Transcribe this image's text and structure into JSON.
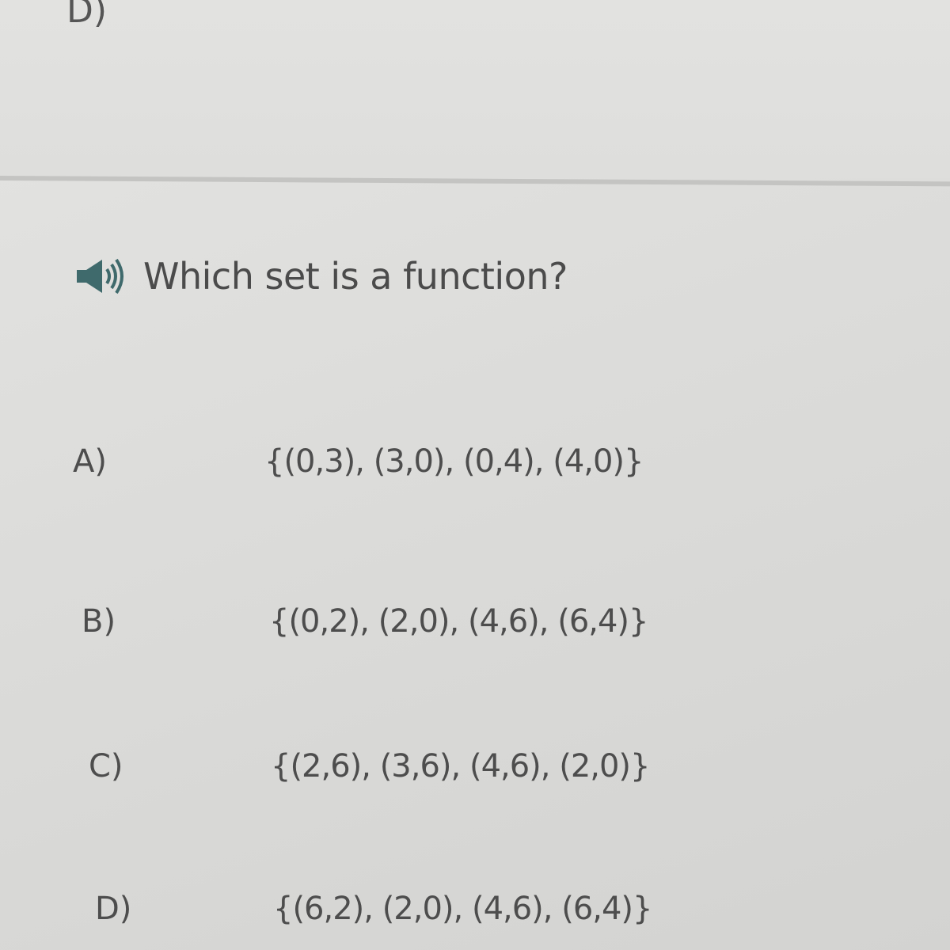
{
  "previous_question": {
    "last_option_label": "D)"
  },
  "question": {
    "icon": "speaker-audio-icon",
    "text": "Which set is a function?"
  },
  "options": [
    {
      "label": "A)",
      "set": "{(0,3), (3,0), (0,4), (4,0)}"
    },
    {
      "label": "B)",
      "set": "{(0,2), (2,0), (4,6), (6,4)}"
    },
    {
      "label": "C)",
      "set": "{(2,6), (3,6), (4,6), (2,0)}"
    },
    {
      "label": "D)",
      "set": "{(6,2), (2,0), (4,6), (6,4)}"
    }
  ],
  "colors": {
    "icon": "#3f6a6c",
    "text": "#4a4a4a",
    "background": "#dddddb"
  }
}
